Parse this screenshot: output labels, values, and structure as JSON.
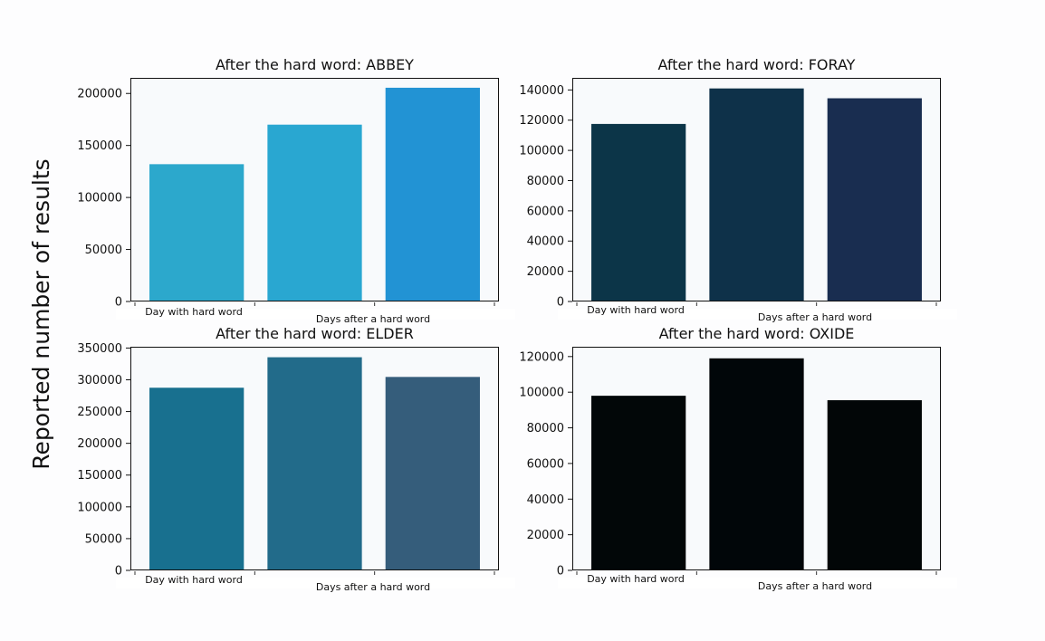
{
  "figure": {
    "ylabel": "Reported number of results"
  },
  "chart_data": [
    {
      "type": "bar",
      "title": "After the hard word: ABBEY",
      "categories": [
        "Day with hard word",
        "",
        ""
      ],
      "xlabel": "Days after a hard word",
      "values": [
        132000,
        170000,
        205500
      ],
      "ylim": [
        0,
        215000
      ],
      "yticks": [
        0,
        50000,
        100000,
        150000,
        200000
      ],
      "colors": [
        "#2ca8cc",
        "#29a7d1",
        "#2293d4"
      ]
    },
    {
      "type": "bar",
      "title": "After the hard word: FORAY",
      "categories": [
        "Day with hard word",
        "",
        ""
      ],
      "xlabel": "Days after a hard word",
      "values": [
        117500,
        141000,
        134500
      ],
      "ylim": [
        0,
        148000
      ],
      "yticks": [
        0,
        20000,
        40000,
        60000,
        80000,
        100000,
        120000,
        140000
      ],
      "colors": [
        "#0c3548",
        "#0e3149",
        "#192d50"
      ]
    },
    {
      "type": "bar",
      "title": "After the hard word: ELDER",
      "categories": [
        "Day with hard word",
        "",
        ""
      ],
      "xlabel": "Days after a hard word",
      "values": [
        287500,
        335500,
        304500
      ],
      "ylim": [
        0,
        352000
      ],
      "yticks": [
        0,
        50000,
        100000,
        150000,
        200000,
        250000,
        300000,
        350000
      ],
      "colors": [
        "#18708f",
        "#226b8a",
        "#355d7b"
      ]
    },
    {
      "type": "bar",
      "title": "After the hard word: OXIDE",
      "categories": [
        "Day with hard word",
        "",
        ""
      ],
      "xlabel": "Days after a hard word",
      "values": [
        98000,
        119000,
        95500
      ],
      "ylim": [
        0,
        125500
      ],
      "yticks": [
        0,
        20000,
        40000,
        60000,
        80000,
        100000,
        120000
      ],
      "colors": [
        "#020708",
        "#010609",
        "#020607"
      ]
    }
  ]
}
